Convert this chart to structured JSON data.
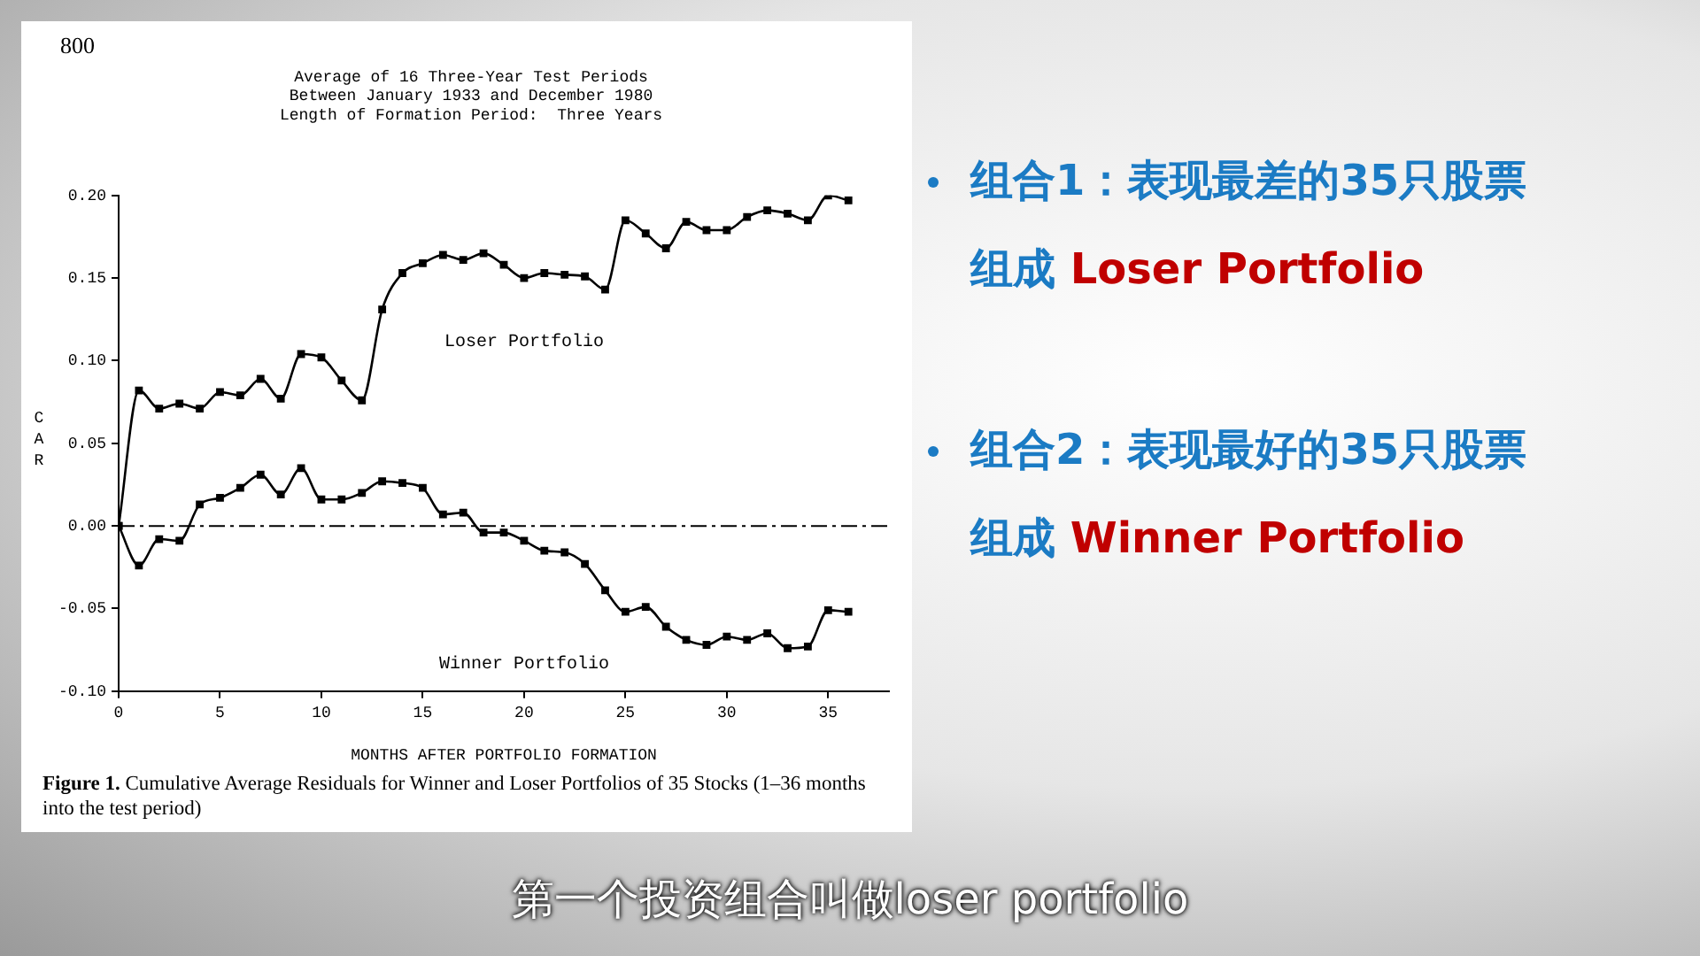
{
  "chart_data": {
    "type": "line",
    "title": "Average of 16 Three-Year Test Periods\nBetween January 1933 and December 1980\nLength of Formation Period:  Three Years",
    "xlabel": "MONTHS AFTER PORTFOLIO FORMATION",
    "ylabel": "CAR",
    "x": [
      0,
      1,
      2,
      3,
      4,
      5,
      6,
      7,
      8,
      9,
      10,
      11,
      12,
      13,
      14,
      15,
      16,
      17,
      18,
      19,
      20,
      21,
      22,
      23,
      24,
      25,
      26,
      27,
      28,
      29,
      30,
      31,
      32,
      33,
      34,
      35,
      36
    ],
    "series": [
      {
        "name": "Loser Portfolio",
        "color": "#000000",
        "values": [
          0,
          0.082,
          0.071,
          0.074,
          0.071,
          0.081,
          0.079,
          0.089,
          0.077,
          0.104,
          0.102,
          0.088,
          0.076,
          0.131,
          0.153,
          0.159,
          0.164,
          0.161,
          0.165,
          0.158,
          0.15,
          0.153,
          0.152,
          0.151,
          0.143,
          0.185,
          0.177,
          0.168,
          0.184,
          0.179,
          0.179,
          0.187,
          0.191,
          0.189,
          0.185,
          0.2,
          0.197
        ]
      },
      {
        "name": "Winner Portfolio",
        "color": "#000000",
        "values": [
          0,
          -0.024,
          -0.008,
          -0.009,
          0.013,
          0.017,
          0.023,
          0.031,
          0.019,
          0.035,
          0.016,
          0.016,
          0.02,
          0.027,
          0.026,
          0.023,
          0.007,
          0.008,
          -0.004,
          -0.004,
          -0.009,
          -0.015,
          -0.016,
          -0.023,
          -0.039,
          -0.052,
          -0.049,
          -0.061,
          -0.069,
          -0.072,
          -0.067,
          -0.069,
          -0.065,
          -0.074,
          -0.073,
          -0.051,
          -0.052
        ]
      }
    ],
    "xlim": [
      0,
      38
    ],
    "xticks": [
      0,
      5,
      10,
      15,
      20,
      25,
      30,
      35
    ],
    "ylim": [
      -0.1,
      0.2
    ],
    "yticks": [
      {
        "value": -0.1,
        "label": "-0.10"
      },
      {
        "value": -0.05,
        "label": "-0.05"
      },
      {
        "value": 0,
        "label": "0.00"
      },
      {
        "value": 0.05,
        "label": "0.05"
      },
      {
        "value": 0.1,
        "label": "0.10"
      },
      {
        "value": 0.15,
        "label": "0.15"
      },
      {
        "value": 0.2,
        "label": "0.20"
      }
    ],
    "ref_lines": [
      {
        "axis": "y",
        "value": 0,
        "line_style": "dashdot",
        "color": "#000000"
      }
    ],
    "marker": "square",
    "grid": false,
    "legend": false,
    "annotations": [
      "800",
      "Figure 1. Cumulative Average Residuals for Winner and Loser Portfolios of 35 Stocks (1–36 months into the test period)",
      "组合1：表现最差的35只股票",
      "组成 Loser Portfolio",
      "组合2：表现最好的35只股票",
      "组成 Winner Portfolio",
      "第一个投资组合叫做loser portfolio"
    ]
  }
}
